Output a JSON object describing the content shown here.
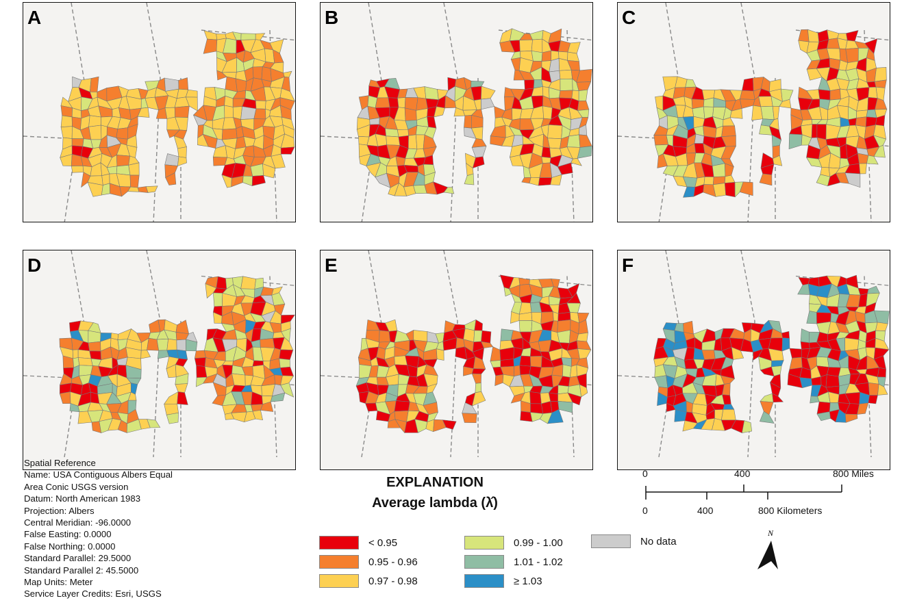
{
  "panels": [
    {
      "label": "A"
    },
    {
      "label": "B"
    },
    {
      "label": "C"
    },
    {
      "label": "D"
    },
    {
      "label": "E"
    },
    {
      "label": "F"
    }
  ],
  "spatial_reference": [
    "Spatial Reference",
    "Name: USA Contiguous Albers Equal",
    "Area Conic USGS version",
    "Datum: North American 1983",
    "Projection: Albers",
    "Central Meridian: -96.0000",
    "False Easting: 0.0000",
    "False Northing: 0.0000",
    "Standard Parallel: 29.5000",
    "Standard Parallel 2: 45.5000",
    "Map Units: Meter",
    "Service Layer Credits: Esri, USGS"
  ],
  "legend": {
    "title": "EXPLANATION",
    "subtitle": "Average lambda (λ̂)",
    "classes": [
      {
        "label": "< 0.95",
        "color": "#e8000b"
      },
      {
        "label": "0.95 - 0.96",
        "color": "#f57f2e"
      },
      {
        "label": "0.97 - 0.98",
        "color": "#fdd052"
      },
      {
        "label": "0.99 - 1.00",
        "color": "#d7e57b"
      },
      {
        "label": "1.01 - 1.02",
        "color": "#8fbda4"
      },
      {
        "label": "≥ 1.03",
        "color": "#2b8fc7"
      },
      {
        "label": "No data",
        "color": "#cccccc"
      }
    ]
  },
  "scale_bar": {
    "miles": [
      "0",
      "400",
      "800 Miles"
    ],
    "kilometers": [
      "0",
      "400",
      "800 Kilometers"
    ]
  },
  "north_arrow": {
    "label": "N"
  }
}
